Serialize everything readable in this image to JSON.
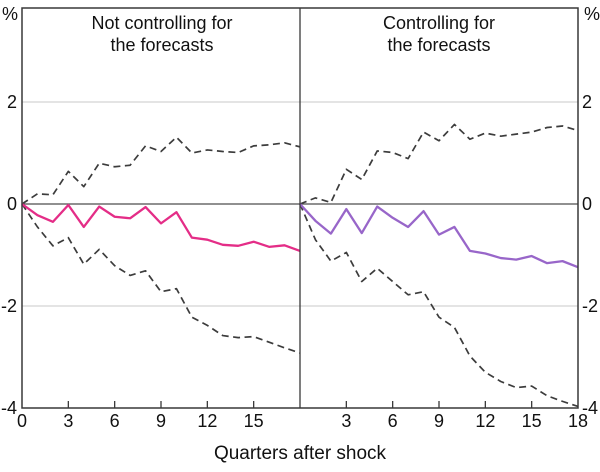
{
  "chart_data": {
    "type": "line",
    "unit": "%",
    "xlabel": "Quarters after shock",
    "x_quarters": [
      0,
      1,
      2,
      3,
      4,
      5,
      6,
      7,
      8,
      9,
      10,
      11,
      12,
      13,
      14,
      15,
      16,
      17,
      18
    ],
    "xlim": [
      0,
      18
    ],
    "ylim": [
      -4,
      3.85
    ],
    "yticks": [
      2,
      0,
      -2,
      -4
    ],
    "grid": "horizontal-only",
    "legend": "none",
    "colors": {
      "center_left": "#E42D87",
      "center_right": "#9866C9",
      "band": "#3C3C3C",
      "gridline": "#C9C9C9",
      "zero_line": "#4D4D4D",
      "frame": "#383838",
      "text": "#111111"
    },
    "panels": [
      {
        "id": "not-controlling",
        "title_line1": "Not controlling for",
        "title_line2": "the forecasts",
        "xticks": [
          0,
          3,
          6,
          9,
          12,
          15
        ],
        "series": [
          {
            "name": "upper-band",
            "style": "dashed",
            "color": "#3C3C3C",
            "values": [
              0,
              0.2,
              0.18,
              0.64,
              0.34,
              0.8,
              0.73,
              0.76,
              1.14,
              1.03,
              1.31,
              1.0,
              1.06,
              1.03,
              1.01,
              1.14,
              1.16,
              1.2,
              1.12
            ]
          },
          {
            "name": "lower-band",
            "style": "dashed",
            "color": "#3C3C3C",
            "values": [
              0,
              -0.45,
              -0.82,
              -0.66,
              -1.18,
              -0.89,
              -1.21,
              -1.4,
              -1.31,
              -1.72,
              -1.66,
              -2.22,
              -2.38,
              -2.58,
              -2.62,
              -2.6,
              -2.71,
              -2.82,
              -2.92
            ]
          },
          {
            "name": "response",
            "style": "solid",
            "color": "#E42D87",
            "values": [
              0,
              -0.22,
              -0.35,
              -0.02,
              -0.45,
              -0.05,
              -0.25,
              -0.28,
              -0.06,
              -0.38,
              -0.16,
              -0.66,
              -0.7,
              -0.8,
              -0.82,
              -0.74,
              -0.84,
              -0.81,
              -0.92
            ]
          }
        ]
      },
      {
        "id": "controlling",
        "title_line1": "Controlling for",
        "title_line2": "the forecasts",
        "xticks": [
          3,
          6,
          9,
          12,
          15,
          18
        ],
        "series": [
          {
            "name": "upper-band",
            "style": "dashed",
            "color": "#3C3C3C",
            "values": [
              0,
              0.12,
              0.03,
              0.68,
              0.48,
              1.04,
              1.01,
              0.89,
              1.41,
              1.24,
              1.56,
              1.27,
              1.39,
              1.33,
              1.37,
              1.41,
              1.5,
              1.53,
              1.44
            ]
          },
          {
            "name": "lower-band",
            "style": "dashed",
            "color": "#3C3C3C",
            "values": [
              0,
              -0.7,
              -1.12,
              -0.95,
              -1.52,
              -1.26,
              -1.52,
              -1.78,
              -1.72,
              -2.22,
              -2.42,
              -2.98,
              -3.3,
              -3.48,
              -3.6,
              -3.57,
              -3.76,
              -3.87,
              -3.97
            ]
          },
          {
            "name": "response",
            "style": "solid",
            "color": "#9866C9",
            "values": [
              0,
              -0.33,
              -0.58,
              -0.1,
              -0.57,
              -0.05,
              -0.27,
              -0.45,
              -0.14,
              -0.6,
              -0.45,
              -0.92,
              -0.97,
              -1.06,
              -1.09,
              -1.02,
              -1.16,
              -1.12,
              -1.24
            ]
          }
        ]
      }
    ]
  }
}
